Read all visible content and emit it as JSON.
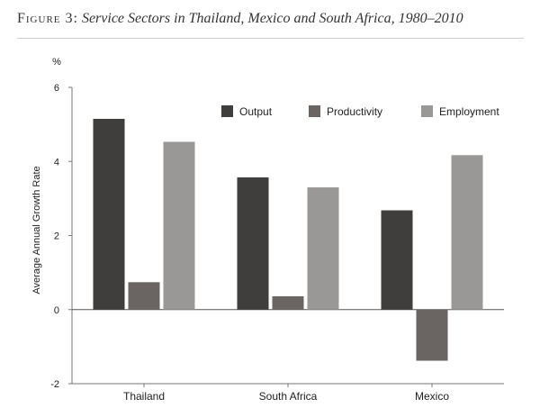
{
  "figure": {
    "label": "Figure 3:",
    "title": "Service Sectors in Thailand, Mexico and South Africa, 1980–2010"
  },
  "chart_data": {
    "type": "bar",
    "categories": [
      "Thailand",
      "South Africa",
      "Mexico"
    ],
    "series": [
      {
        "name": "Output",
        "values": [
          5.15,
          3.57,
          2.68
        ],
        "color": "#3f3e3c"
      },
      {
        "name": "Productivity",
        "values": [
          0.74,
          0.36,
          -1.38
        ],
        "color": "#6a6563"
      },
      {
        "name": "Employment",
        "values": [
          4.53,
          3.3,
          4.17
        ],
        "color": "#9a9896"
      }
    ],
    "ylabel": "Average Annual Growth Rate",
    "yunit": "%",
    "ylim": [
      -2,
      6
    ],
    "yticks": [
      -2,
      0,
      2,
      4,
      6
    ],
    "grid": false,
    "legend_position": "top-right"
  }
}
